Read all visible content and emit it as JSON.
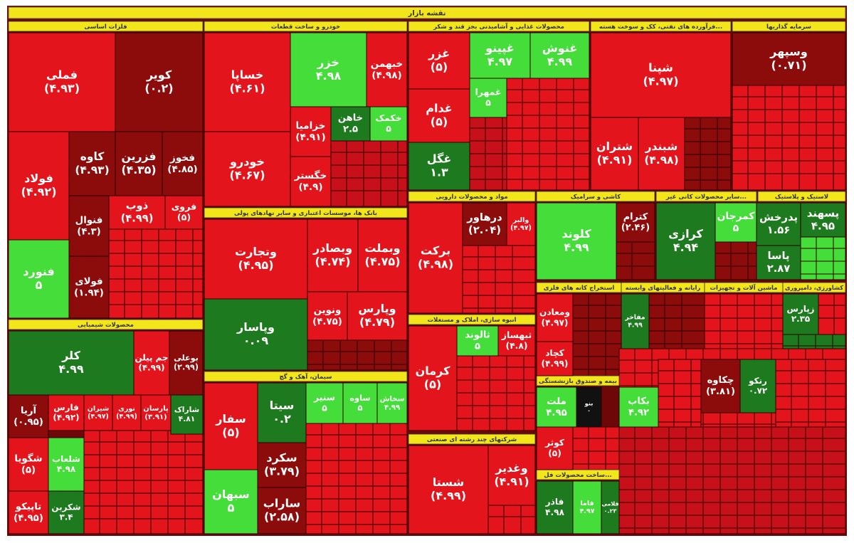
{
  "title": "نقشه بازار",
  "sectors": [
    {
      "name": "فلزات اساسی"
    },
    {
      "name": "خودرو و ساخت قطعات"
    },
    {
      "name": "محصولات غذایی و آشامیدنی بجز قند و شکر"
    },
    {
      "name": "فرآورده های نفتی، کک و سوخت هسته..."
    },
    {
      "name": "سرمایه گذاریها"
    },
    {
      "name": "محصولات شیمیایی"
    },
    {
      "name": "بانک ها، موسسات اعتباری و سایر نهادهای پولی"
    },
    {
      "name": "سیمان، آهک و گچ"
    },
    {
      "name": "مواد و محصولات دارویی"
    },
    {
      "name": "انبوه سازی، املاک و مستغلات"
    },
    {
      "name": "شرکتهای چند رشته ای صنعتی"
    },
    {
      "name": "کاشی و سرامیک"
    },
    {
      "name": "سایر محصولات کانی غیر..."
    },
    {
      "name": "لاستیک و پلاستیک"
    },
    {
      "name": "استخراج کانه های فلزی"
    },
    {
      "name": "رایانه و فعالیتهای وابسته"
    },
    {
      "name": "ماشین آلات و تجهیزات"
    },
    {
      "name": "کشاورزی، دامپروری"
    },
    {
      "name": "بیمه و صندوق بازنشستگی"
    },
    {
      "name": "ساخت محصولات فل..."
    }
  ],
  "tiles": [
    {
      "symbol": "فملی",
      "change": "(۴.۹۳)",
      "color": "#e3141b"
    },
    {
      "symbol": "کویر",
      "change": "(۰.۲)",
      "color": "#8c0b0b"
    },
    {
      "symbol": "فولاد",
      "change": "(۴.۹۲)",
      "color": "#e3141b"
    },
    {
      "symbol": "کاوه",
      "change": "(۴.۹۳)",
      "color": "#8c0b0b"
    },
    {
      "symbol": "فزرین",
      "change": "(۴.۳۵)",
      "color": "#8c0b0b"
    },
    {
      "symbol": "فخوز",
      "change": "(۴.۸۵)",
      "color": "#8c0b0b"
    },
    {
      "symbol": "فنورد",
      "change": "۵",
      "color": "#45dd3a"
    },
    {
      "symbol": "فنوال",
      "change": "(۴.۳)",
      "color": "#8c0b0b"
    },
    {
      "symbol": "فولای",
      "change": "(۱.۹۴)",
      "color": "#8c0b0b"
    },
    {
      "symbol": "ذوب",
      "change": "(۴.۹۹)",
      "color": "#e3141b"
    },
    {
      "symbol": "فروی",
      "change": "(۵)",
      "color": "#e3141b"
    },
    {
      "symbol": "کلر",
      "change": "۴.۹۹",
      "color": "#1e7a1e"
    },
    {
      "symbol": "جم پیلن",
      "change": "(۴.۹۹)",
      "color": "#e3141b"
    },
    {
      "symbol": "بوعلی",
      "change": "(۲.۹۹)",
      "color": "#8c0b0b"
    },
    {
      "symbol": "آریا",
      "change": "(۰.۹۵)",
      "color": "#8c0b0b"
    },
    {
      "symbol": "فارس",
      "change": "(۴.۹۲)",
      "color": "#e3141b"
    },
    {
      "symbol": "شیران",
      "change": "(۴.۹۷)",
      "color": "#e3141b"
    },
    {
      "symbol": "نوری",
      "change": "(۴.۹۹)",
      "color": "#e3141b"
    },
    {
      "symbol": "پارسان",
      "change": "(۳.۹۱)",
      "color": "#e3141b"
    },
    {
      "symbol": "شاراک",
      "change": "۴.۸۱",
      "color": "#1e7a1e"
    },
    {
      "symbol": "شگویا",
      "change": "(۵)",
      "color": "#e3141b"
    },
    {
      "symbol": "تاپیکو",
      "change": "(۴.۹۵)",
      "color": "#e3141b"
    },
    {
      "symbol": "شلعاب",
      "change": "۴.۹۸",
      "color": "#45dd3a"
    },
    {
      "symbol": "شکربن",
      "change": "۳.۴",
      "color": "#1e7a1e"
    },
    {
      "symbol": "خساپا",
      "change": "(۴.۶۱)",
      "color": "#e3141b"
    },
    {
      "symbol": "خزر",
      "change": "۴.۹۸",
      "color": "#45dd3a"
    },
    {
      "symbol": "خبهمن",
      "change": "(۴.۹۸)",
      "color": "#e3141b"
    },
    {
      "symbol": "خودرو",
      "change": "(۴.۶۷)",
      "color": "#e3141b"
    },
    {
      "symbol": "خزامیا",
      "change": "(۴.۹۱)",
      "color": "#e3141b"
    },
    {
      "symbol": "خاهن",
      "change": "۲.۵",
      "color": "#1e7a1e"
    },
    {
      "symbol": "خکمک",
      "change": "۵",
      "color": "#45dd3a"
    },
    {
      "symbol": "خگستر",
      "change": "(۴.۹)",
      "color": "#e3141b"
    },
    {
      "symbol": "وتجارت",
      "change": "(۴.۹۵)",
      "color": "#e3141b"
    },
    {
      "symbol": "وبصادر",
      "change": "(۴.۷۴)",
      "color": "#e3141b"
    },
    {
      "symbol": "وبملت",
      "change": "(۴.۷۵)",
      "color": "#e3141b"
    },
    {
      "symbol": "وپاسار",
      "change": "۰.۰۹",
      "color": "#1e7a1e"
    },
    {
      "symbol": "ونوین",
      "change": "(۴.۷۵)",
      "color": "#e3141b"
    },
    {
      "symbol": "وپارس",
      "change": "(۴.۷۹)",
      "color": "#e3141b"
    },
    {
      "symbol": "سفار",
      "change": "(۵)",
      "color": "#e3141b"
    },
    {
      "symbol": "سیتا",
      "change": "۰.۲",
      "color": "#1e7a1e"
    },
    {
      "symbol": "سبهان",
      "change": "۵",
      "color": "#45dd3a"
    },
    {
      "symbol": "سکرد",
      "change": "(۳.۷۹)",
      "color": "#8c0b0b"
    },
    {
      "symbol": "ساراب",
      "change": "(۲.۵۸)",
      "color": "#8c0b0b"
    },
    {
      "symbol": "سنیر",
      "change": "۵",
      "color": "#45dd3a"
    },
    {
      "symbol": "ساوه",
      "change": "۵",
      "color": "#45dd3a"
    },
    {
      "symbol": "سخاش",
      "change": "۴.۹۹",
      "color": "#45dd3a"
    },
    {
      "symbol": "غزر",
      "change": "(۵)",
      "color": "#e3141b"
    },
    {
      "symbol": "غدام",
      "change": "(۵)",
      "color": "#e3141b"
    },
    {
      "symbol": "غگل",
      "change": "۱.۳",
      "color": "#1e7a1e"
    },
    {
      "symbol": "غپینو",
      "change": "۴.۹۷",
      "color": "#45dd3a"
    },
    {
      "symbol": "غنوش",
      "change": "۴.۹۹",
      "color": "#45dd3a"
    },
    {
      "symbol": "غمهرا",
      "change": "۵",
      "color": "#45dd3a"
    },
    {
      "symbol": "برکت",
      "change": "(۴.۹۸)",
      "color": "#e3141b"
    },
    {
      "symbol": "درهاور",
      "change": "(۲.۰۴)",
      "color": "#8c0b0b"
    },
    {
      "symbol": "والبر",
      "change": "(۴.۹۷)",
      "color": "#e3141b"
    },
    {
      "symbol": "کرمان",
      "change": "(۵)",
      "color": "#e3141b"
    },
    {
      "symbol": "ثالوند",
      "change": "۵",
      "color": "#45dd3a"
    },
    {
      "symbol": "ثبهساز",
      "change": "(۴.۸)",
      "color": "#e3141b"
    },
    {
      "symbol": "شستا",
      "change": "(۴.۹۹)",
      "color": "#e3141b"
    },
    {
      "symbol": "وغدیر",
      "change": "(۴.۹۱)",
      "color": "#e3141b"
    },
    {
      "symbol": "کلوند",
      "change": "۴.۹۹",
      "color": "#45dd3a"
    },
    {
      "symbol": "کترام",
      "change": "(۲.۴۶)",
      "color": "#8c0b0b"
    },
    {
      "symbol": "کرازی",
      "change": "۴.۹۴",
      "color": "#1e7a1e"
    },
    {
      "symbol": "کمرجان",
      "change": "۵",
      "color": "#45dd3a"
    },
    {
      "symbol": "پدرخش",
      "change": "۱.۵۶",
      "color": "#1e7a1e"
    },
    {
      "symbol": "پسهند",
      "change": "۴.۹۵",
      "color": "#1e7a1e"
    },
    {
      "symbol": "پاسا",
      "change": "۲.۸۷",
      "color": "#1e7a1e"
    },
    {
      "symbol": "شپنا",
      "change": "(۴.۹۷)",
      "color": "#e3141b"
    },
    {
      "symbol": "شتران",
      "change": "(۴.۹۱)",
      "color": "#e3141b"
    },
    {
      "symbol": "شبندر",
      "change": "(۴.۹۸)",
      "color": "#e3141b"
    },
    {
      "symbol": "وسپهر",
      "change": "(۰.۷۱)",
      "color": "#8c0b0b"
    },
    {
      "symbol": "ومعادن",
      "change": "(۴.۹۷)",
      "color": "#e3141b"
    },
    {
      "symbol": "کچاد",
      "change": "(۴.۹۹)",
      "color": "#e3141b"
    },
    {
      "symbol": "مفاخر",
      "change": "۴.۹۹",
      "color": "#1e7a1e"
    },
    {
      "symbol": "زپارس",
      "change": "۲.۳۵",
      "color": "#1e7a1e"
    },
    {
      "symbol": "ملت",
      "change": "۴.۹۵",
      "color": "#45dd3a"
    },
    {
      "symbol": "بنو",
      "change": "۰",
      "color": "#111111"
    },
    {
      "symbol": "کوثر",
      "change": "(۵)",
      "color": "#e3141b"
    },
    {
      "symbol": "فاذر",
      "change": "۴.۹۸",
      "color": "#1e7a1e"
    },
    {
      "symbol": "فاما",
      "change": "۴.۹۷",
      "color": "#45dd3a"
    },
    {
      "symbol": "فلامی",
      "change": "۰.۲۳",
      "color": "#1e7a1e"
    },
    {
      "symbol": "بکاب",
      "change": "۴.۹۲",
      "color": "#45dd3a"
    },
    {
      "symbol": "چکاوه",
      "change": "(۳.۸۱)",
      "color": "#8c0b0b"
    },
    {
      "symbol": "رنکو",
      "change": "۰.۷۲",
      "color": "#1e7a1e"
    }
  ]
}
